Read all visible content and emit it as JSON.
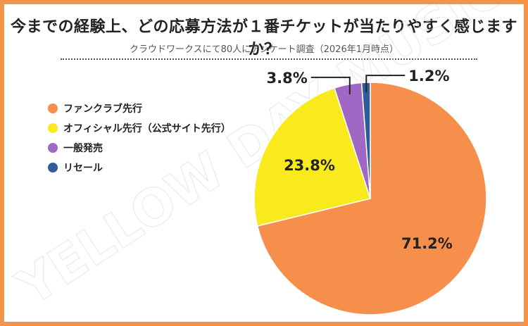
{
  "title": "今までの経験上、どの応募方法が１番チケットが当たりやすく感じますか？",
  "subtitle": "クラウドワークスにて80人にアンケート調査（2026年1月時点）",
  "watermark": "YELLOW DAY MUSIC",
  "colors": {
    "frame": "#f4934a",
    "fan_club": "#f68f4c",
    "official": "#f8ea1c",
    "general": "#a068c4",
    "resale": "#2e5d98"
  },
  "chart_data": {
    "type": "pie",
    "title": "今までの経験上、どの応募方法が１番チケットが当たりやすく感じますか？",
    "subtitle": "クラウドワークスにて80人にアンケート調査（2026年1月時点）",
    "legend_position": "left",
    "unit": "%",
    "slices": [
      {
        "label": "ファンクラブ先行",
        "value": 71.2,
        "value_label": "71.2%",
        "color": "#f68f4c"
      },
      {
        "label": "オフィシャル先行（公式サイト先行）",
        "value": 23.8,
        "value_label": "23.8%",
        "color": "#f8ea1c"
      },
      {
        "label": "一般発売",
        "value": 3.8,
        "value_label": "3.8%",
        "color": "#a068c4"
      },
      {
        "label": "リセール",
        "value": 1.2,
        "value_label": "1.2%",
        "color": "#2e5d98"
      }
    ]
  }
}
